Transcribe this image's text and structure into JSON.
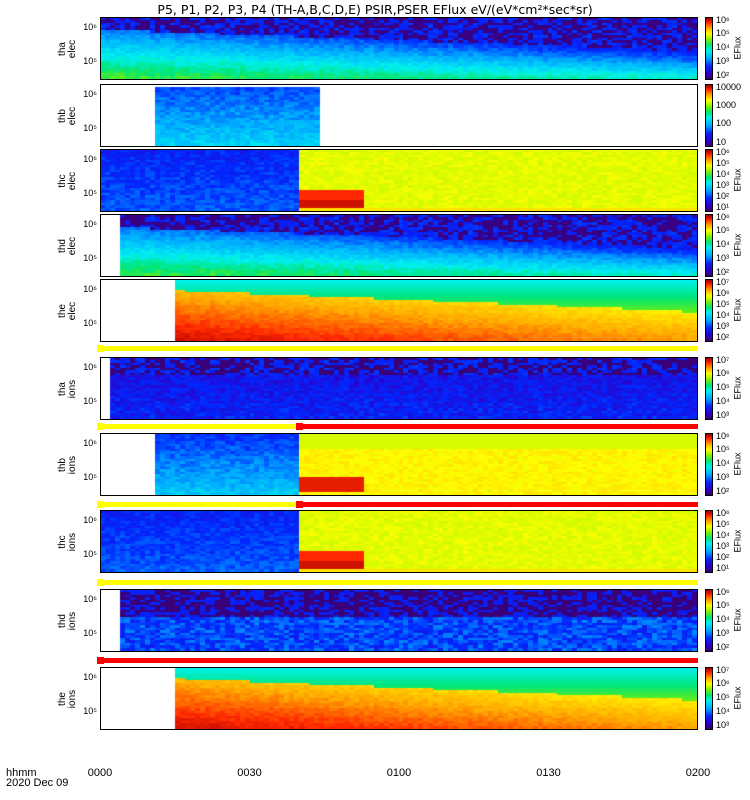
{
  "title": "P5, P1, P2, P3, P4 (TH-A,B,C,D,E) PSIR,PSER EFlux eV/(eV*cm²*sec*sr)",
  "x_ticks": [
    "0000",
    "0030",
    "0100",
    "0130",
    "0200"
  ],
  "footer": {
    "line1": "hhmm",
    "line2": "2020 Dec 09"
  },
  "colors": {
    "sat": "#ffff00",
    "unsat": "#ff0000"
  },
  "chart_data": {
    "type": "heatmap",
    "title": "P5, P1, P2, P3, P4 (TH-A,B,C,D,E) PSIR,PSER EFlux eV/(eV*cm²*sec*sr)",
    "x_ticks": [
      "0000",
      "0030",
      "0100",
      "0130",
      "0200"
    ],
    "x_range_hhmm": [
      "0000",
      "0200"
    ],
    "date": "2020 Dec 09",
    "panels": [
      {
        "label": "tha\nelec",
        "y_ticks": [
          "10⁶",
          "10⁵"
        ],
        "cbar_label": "EFlux",
        "cbar_ticks": [
          "10⁶",
          "10⁵",
          "10⁴",
          "10³",
          "10²"
        ],
        "cbar_range_log": [
          2,
          6.5
        ],
        "data_start_min": 0,
        "data_end_min": 120,
        "pattern": "electron_decay"
      },
      {
        "label": "thb\nelec",
        "y_ticks": [
          "10⁶",
          "10⁵"
        ],
        "cbar_label": "",
        "cbar_ticks": [
          "10000",
          "1000",
          "100",
          "10"
        ],
        "cbar_range_log": [
          1,
          4.5
        ],
        "data_start_min": 11,
        "data_end_min": 44,
        "pattern": "cyan_block"
      },
      {
        "label": "thc\nelec",
        "y_ticks": [
          "10⁶",
          "10⁵"
        ],
        "cbar_label": "EFlux",
        "cbar_ticks": [
          "10⁶",
          "10⁵",
          "10⁴",
          "10³",
          "10²",
          "10¹"
        ],
        "cbar_range_log": [
          1,
          6.5
        ],
        "data_start_min": 0,
        "data_end_min": 120,
        "split_min": 40,
        "pattern": "split_blue_yellow"
      },
      {
        "label": "thd\nelec",
        "y_ticks": [
          "10⁶",
          "10⁵"
        ],
        "cbar_label": "EFlux",
        "cbar_ticks": [
          "10⁶",
          "10⁵",
          "10⁴",
          "10³",
          "10²"
        ],
        "cbar_range_log": [
          2,
          6.5
        ],
        "data_start_min": 4,
        "data_end_min": 120,
        "pattern": "electron_decay"
      },
      {
        "label": "the\nelec",
        "y_ticks": [
          "10⁶",
          "10⁵"
        ],
        "cbar_label": "EFlux",
        "cbar_ticks": [
          "10⁷",
          "10⁶",
          "10⁵",
          "10⁴",
          "10³",
          "10²"
        ],
        "cbar_range_log": [
          2,
          7.3
        ],
        "data_start_min": 15,
        "data_end_min": 120,
        "pattern": "red_plasma"
      },
      {
        "label": "tha\nions",
        "y_ticks": [
          "10⁶",
          "10⁵"
        ],
        "cbar_label": "EFlux",
        "cbar_ticks": [
          "10⁷",
          "10⁶",
          "10⁵",
          "10⁴",
          "10³"
        ],
        "cbar_range_log": [
          3,
          7.3
        ],
        "data_start_min": 2,
        "data_end_min": 120,
        "pattern": "ion_low"
      },
      {
        "label": "thb\nions",
        "y_ticks": [
          "10⁶",
          "10⁵"
        ],
        "cbar_label": "EFlux",
        "cbar_ticks": [
          "10⁶",
          "10⁵",
          "10⁴",
          "10³",
          "10²"
        ],
        "cbar_range_log": [
          2,
          6.3
        ],
        "data_start_min": 11,
        "data_end_min": 120,
        "split_min": 40,
        "pattern": "split_cyan_yellow"
      },
      {
        "label": "thc\nions",
        "y_ticks": [
          "10⁶",
          "10⁵"
        ],
        "cbar_label": "EFlux",
        "cbar_ticks": [
          "10⁶",
          "10⁵",
          "10⁴",
          "10³",
          "10²",
          "10¹"
        ],
        "cbar_range_log": [
          1,
          6.3
        ],
        "data_start_min": 0,
        "data_end_min": 120,
        "split_min": 40,
        "pattern": "split_blue_yellow"
      },
      {
        "label": "thd\nions",
        "y_ticks": [
          "10⁶",
          "10⁵"
        ],
        "cbar_label": "EFlux",
        "cbar_ticks": [
          "10⁶",
          "10⁵",
          "10⁴",
          "10³",
          "10²"
        ],
        "cbar_range_log": [
          2,
          6.5
        ],
        "data_start_min": 4,
        "data_end_min": 120,
        "pattern": "ion_noise"
      },
      {
        "label": "the\nions",
        "y_ticks": [
          "10⁶",
          "10⁵"
        ],
        "cbar_label": "EFlux",
        "cbar_ticks": [
          "10⁷",
          "10⁶",
          "10⁵",
          "10⁴",
          "10³"
        ],
        "cbar_range_log": [
          3,
          7.3
        ],
        "data_start_min": 15,
        "data_end_min": 120,
        "pattern": "red_plasma"
      }
    ],
    "flag_bars": [
      {
        "after_panel": 4,
        "segments": [
          {
            "from_min": 0,
            "to_min": 120,
            "state": "sat"
          }
        ]
      },
      {
        "after_panel": 5,
        "segments": [
          {
            "from_min": 0,
            "to_min": 40,
            "state": "sat"
          },
          {
            "from_min": 40,
            "to_min": 120,
            "state": "unsat"
          }
        ]
      },
      {
        "after_panel": 6,
        "segments": [
          {
            "from_min": 0,
            "to_min": 40,
            "state": "sat"
          },
          {
            "from_min": 40,
            "to_min": 120,
            "state": "unsat"
          }
        ]
      },
      {
        "after_panel": 7,
        "segments": [
          {
            "from_min": 0,
            "to_min": 120,
            "state": "sat"
          }
        ]
      },
      {
        "after_panel": 8,
        "segments": [
          {
            "from_min": 0,
            "to_min": 120,
            "state": "unsat"
          }
        ]
      }
    ]
  }
}
